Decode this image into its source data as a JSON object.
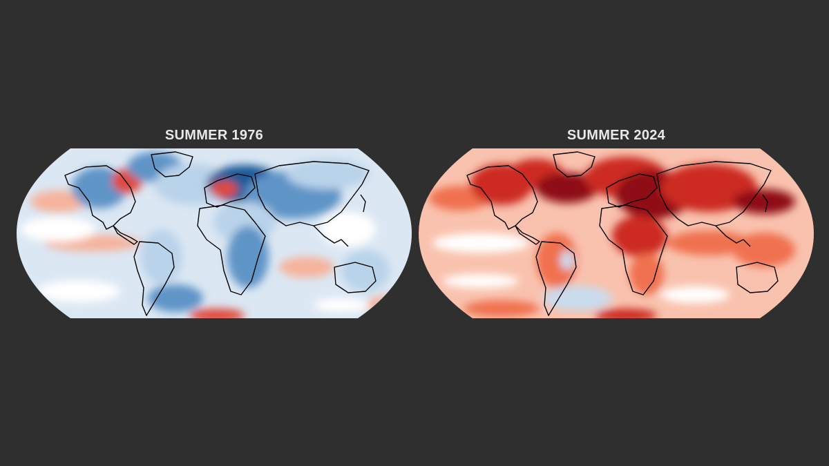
{
  "maps": [
    {
      "title": "SUMMER 1976",
      "palette": "cool",
      "base_color": "#dbe7f3",
      "anomaly_colors": {
        "strong_warm": "#e04a3a",
        "warm": "#f6b39c",
        "neutral": "#ffffff",
        "cool": "#b9d3ea",
        "cold": "#5e94c7",
        "very_cold": "#1f5a98"
      }
    },
    {
      "title": "SUMMER 2024",
      "palette": "warm",
      "base_color": "#f9c2ae",
      "anomaly_colors": {
        "very_hot": "#8e0d14",
        "hot": "#cc2a22",
        "warm": "#f0714f",
        "mild": "#fbb39a",
        "neutral": "#ffffff",
        "cool": "#c9dcee"
      }
    }
  ],
  "colors": {
    "background": "#2f2f2f",
    "title": "#e8e8e8",
    "coastline": "#000000"
  }
}
